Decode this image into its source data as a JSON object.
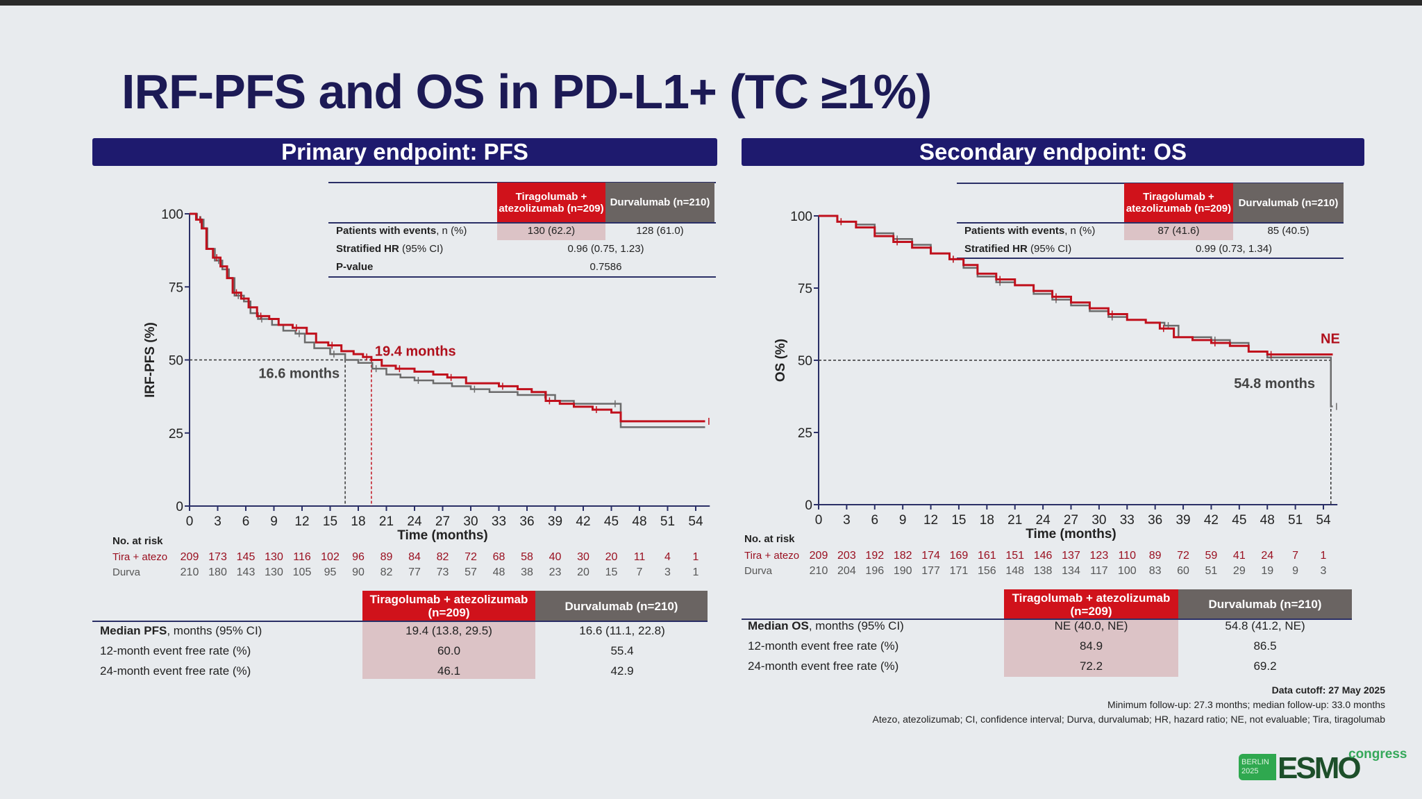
{
  "title": "IRF-PFS and OS in PD-L1+ (TC ≥1%)",
  "colors": {
    "tira": "#c0101c",
    "durva": "#6b6b6b",
    "navy": "#1e1a6e"
  },
  "pfs": {
    "banner": "Primary endpoint: PFS",
    "top_table": {
      "col1": "Tiragolumab + atezolizumab (n=209)",
      "col2": "Durvalumab (n=210)",
      "rows": [
        {
          "label_b": "Patients with events",
          "label": ", n (%)",
          "v1": "130 (62.2)",
          "v2": "128 (61.0)"
        },
        {
          "label_b": "Stratified HR",
          "label": " (95% CI)",
          "v": "0.96 (0.75, 1.23)"
        },
        {
          "label_b": "P-value",
          "label": "",
          "v": "0.7586"
        }
      ]
    },
    "risk": {
      "title": "No. at risk",
      "tira_label": "Tira + atezo",
      "durva_label": "Durva",
      "tira": [
        "209",
        "173",
        "145",
        "130",
        "116",
        "102",
        "96",
        "89",
        "84",
        "82",
        "72",
        "68",
        "58",
        "40",
        "30",
        "20",
        "11",
        "4",
        "1"
      ],
      "durva": [
        "210",
        "180",
        "143",
        "130",
        "105",
        "95",
        "90",
        "82",
        "77",
        "73",
        "57",
        "48",
        "38",
        "23",
        "20",
        "15",
        "7",
        "3",
        "1"
      ]
    },
    "bottom_table": {
      "col1": "Tiragolumab + atezolizumab (n=209)",
      "col2": "Durvalumab (n=210)",
      "rows": [
        {
          "label_b": "Median PFS",
          "label": ", months (95% CI)",
          "v1": "19.4 (13.8, 29.5)",
          "v2": "16.6 (11.1, 22.8)"
        },
        {
          "label_b": "",
          "label": "12-month event free rate (%)",
          "v1": "60.0",
          "v2": "55.4"
        },
        {
          "label_b": "",
          "label": "24-month event free rate (%)",
          "v1": "46.1",
          "v2": "42.9"
        }
      ]
    }
  },
  "os": {
    "banner": "Secondary endpoint: OS",
    "top_table": {
      "col1": "Tiragolumab + atezolizumab (n=209)",
      "col2": "Durvalumab (n=210)",
      "rows": [
        {
          "label_b": "Patients with events",
          "label": ", n (%)",
          "v1": "87 (41.6)",
          "v2": "85 (40.5)"
        },
        {
          "label_b": "Stratified HR",
          "label": " (95% CI)",
          "v": "0.99 (0.73, 1.34)"
        }
      ]
    },
    "risk": {
      "title": "No. at risk",
      "tira_label": "Tira + atezo",
      "durva_label": "Durva",
      "tira": [
        "209",
        "203",
        "192",
        "182",
        "174",
        "169",
        "161",
        "151",
        "146",
        "137",
        "123",
        "110",
        "89",
        "72",
        "59",
        "41",
        "24",
        "7",
        "1"
      ],
      "durva": [
        "210",
        "204",
        "196",
        "190",
        "177",
        "171",
        "156",
        "148",
        "138",
        "134",
        "117",
        "100",
        "83",
        "60",
        "51",
        "29",
        "19",
        "9",
        "3"
      ]
    },
    "bottom_table": {
      "col1": "Tiragolumab + atezolizumab (n=209)",
      "col2": "Durvalumab (n=210)",
      "rows": [
        {
          "label_b": "Median OS",
          "label": ", months (95% CI)",
          "v1": "NE (40.0, NE)",
          "v2": "54.8 (41.2, NE)"
        },
        {
          "label_b": "",
          "label": "12-month event free rate (%)",
          "v1": "84.9",
          "v2": "86.5"
        },
        {
          "label_b": "",
          "label": "24-month event free rate (%)",
          "v1": "72.2",
          "v2": "69.2"
        }
      ]
    }
  },
  "footer": {
    "cutoff": "Data cutoff: 27 May 2025",
    "followup": "Minimum follow-up: 27.3 months; median follow-up: 33.0 months",
    "abbrev": "Atezo, atezolizumab; CI, confidence interval; Durva, durvalumab; HR, hazard ratio; NE, not evaluable; Tira, tiragolumab"
  },
  "logo": {
    "city": "BERLIN",
    "year": "2025",
    "name": "ESMO",
    "suffix": "congress"
  },
  "chart_data": [
    {
      "type": "line",
      "title": "Primary endpoint: PFS",
      "xlabel": "Time (months)",
      "ylabel": "IRF-PFS (%)",
      "xlim": [
        0,
        55
      ],
      "ylim": [
        0,
        100
      ],
      "xticks": [
        0,
        3,
        6,
        9,
        12,
        15,
        18,
        21,
        24,
        27,
        30,
        33,
        36,
        39,
        42,
        45,
        48,
        51,
        54
      ],
      "yticks": [
        0,
        25,
        50,
        75,
        100
      ],
      "series": [
        {
          "name": "Tira + atezo",
          "color": "#c0101c",
          "points": [
            [
              0,
              100
            ],
            [
              0.7,
              98
            ],
            [
              1.3,
              95
            ],
            [
              1.8,
              88
            ],
            [
              2.5,
              85
            ],
            [
              3.3,
              82
            ],
            [
              4,
              78
            ],
            [
              4.6,
              73
            ],
            [
              5.5,
              71
            ],
            [
              6.3,
              68
            ],
            [
              7.2,
              65
            ],
            [
              8.5,
              64
            ],
            [
              9.5,
              62
            ],
            [
              11,
              61
            ],
            [
              12.5,
              59
            ],
            [
              13.5,
              56
            ],
            [
              14.8,
              55
            ],
            [
              16.2,
              53
            ],
            [
              17.5,
              52
            ],
            [
              18.5,
              51
            ],
            [
              19.4,
              50
            ],
            [
              20.5,
              48
            ],
            [
              22,
              47
            ],
            [
              24,
              46
            ],
            [
              26,
              45
            ],
            [
              27.5,
              44
            ],
            [
              29.5,
              42
            ],
            [
              31,
              42
            ],
            [
              33,
              41
            ],
            [
              35,
              40
            ],
            [
              36.5,
              39
            ],
            [
              38,
              36
            ],
            [
              39.5,
              35
            ],
            [
              41,
              34
            ],
            [
              43,
              33
            ],
            [
              45,
              32
            ],
            [
              46,
              29
            ],
            [
              55,
              29
            ]
          ]
        },
        {
          "name": "Durva",
          "color": "#6b6b6b",
          "points": [
            [
              0,
              100
            ],
            [
              0.8,
              98
            ],
            [
              1.5,
              95
            ],
            [
              1.9,
              88
            ],
            [
              2.7,
              84
            ],
            [
              3.5,
              81
            ],
            [
              4.2,
              78
            ],
            [
              4.8,
              72
            ],
            [
              5.8,
              70
            ],
            [
              6.5,
              66
            ],
            [
              7.3,
              64
            ],
            [
              8.8,
              62
            ],
            [
              10,
              60
            ],
            [
              11.3,
              59
            ],
            [
              12.3,
              56
            ],
            [
              13.3,
              54
            ],
            [
              15,
              52
            ],
            [
              16.6,
              50
            ],
            [
              18,
              49
            ],
            [
              19.5,
              47
            ],
            [
              21,
              45
            ],
            [
              22.5,
              44
            ],
            [
              24,
              43
            ],
            [
              26,
              42
            ],
            [
              28,
              41
            ],
            [
              30,
              40
            ],
            [
              32,
              39
            ],
            [
              35,
              38
            ],
            [
              37.5,
              38
            ],
            [
              39,
              36
            ],
            [
              41,
              35
            ],
            [
              45,
              35
            ],
            [
              46,
              27
            ],
            [
              55,
              27
            ]
          ]
        }
      ],
      "annotations": [
        {
          "text": "19.4 months",
          "series": "Tira + atezo",
          "x": 19.4,
          "y": 50
        },
        {
          "text": "16.6 months",
          "series": "Durva",
          "x": 16.6,
          "y": 50
        }
      ]
    },
    {
      "type": "line",
      "title": "Secondary endpoint: OS",
      "xlabel": "Time (months)",
      "ylabel": "OS (%)",
      "xlim": [
        0,
        55
      ],
      "ylim": [
        0,
        100
      ],
      "xticks": [
        0,
        3,
        6,
        9,
        12,
        15,
        18,
        21,
        24,
        27,
        30,
        33,
        36,
        39,
        42,
        45,
        48,
        51,
        54
      ],
      "yticks": [
        0,
        25,
        50,
        75,
        100
      ],
      "series": [
        {
          "name": "Tira + atezo",
          "color": "#c0101c",
          "points": [
            [
              0,
              100
            ],
            [
              2,
              98
            ],
            [
              4,
              96
            ],
            [
              6,
              93
            ],
            [
              8,
              91
            ],
            [
              10,
              89
            ],
            [
              12,
              87
            ],
            [
              14,
              85
            ],
            [
              15.5,
              83
            ],
            [
              17,
              80
            ],
            [
              19,
              78
            ],
            [
              21,
              76
            ],
            [
              23,
              74
            ],
            [
              25,
              72
            ],
            [
              27,
              70
            ],
            [
              29,
              68
            ],
            [
              31,
              66
            ],
            [
              33,
              64
            ],
            [
              35,
              63
            ],
            [
              36.5,
              61
            ],
            [
              38,
              58
            ],
            [
              40,
              57
            ],
            [
              42,
              56
            ],
            [
              44,
              55
            ],
            [
              46,
              53
            ],
            [
              48,
              52
            ],
            [
              55,
              52
            ]
          ]
        },
        {
          "name": "Durva",
          "color": "#6b6b6b",
          "points": [
            [
              0,
              100
            ],
            [
              2,
              98
            ],
            [
              4,
              97
            ],
            [
              6,
              94
            ],
            [
              8,
              92
            ],
            [
              10,
              90
            ],
            [
              12,
              87
            ],
            [
              14,
              85
            ],
            [
              15.5,
              82
            ],
            [
              17,
              79
            ],
            [
              19,
              77
            ],
            [
              21,
              76
            ],
            [
              23,
              73
            ],
            [
              25,
              71
            ],
            [
              27,
              69
            ],
            [
              29,
              67
            ],
            [
              31,
              65
            ],
            [
              33,
              64
            ],
            [
              35,
              63
            ],
            [
              37,
              62
            ],
            [
              38.5,
              58
            ],
            [
              40,
              58
            ],
            [
              42,
              57
            ],
            [
              44,
              56
            ],
            [
              46,
              53
            ],
            [
              48,
              51
            ],
            [
              54.8,
              51
            ],
            [
              54.8,
              34
            ],
            [
              55,
              34
            ]
          ]
        }
      ],
      "annotations": [
        {
          "text": "NE",
          "series": "Tira + atezo"
        },
        {
          "text": "54.8 months",
          "series": "Durva",
          "x": 54.8,
          "y": 50
        }
      ]
    }
  ]
}
